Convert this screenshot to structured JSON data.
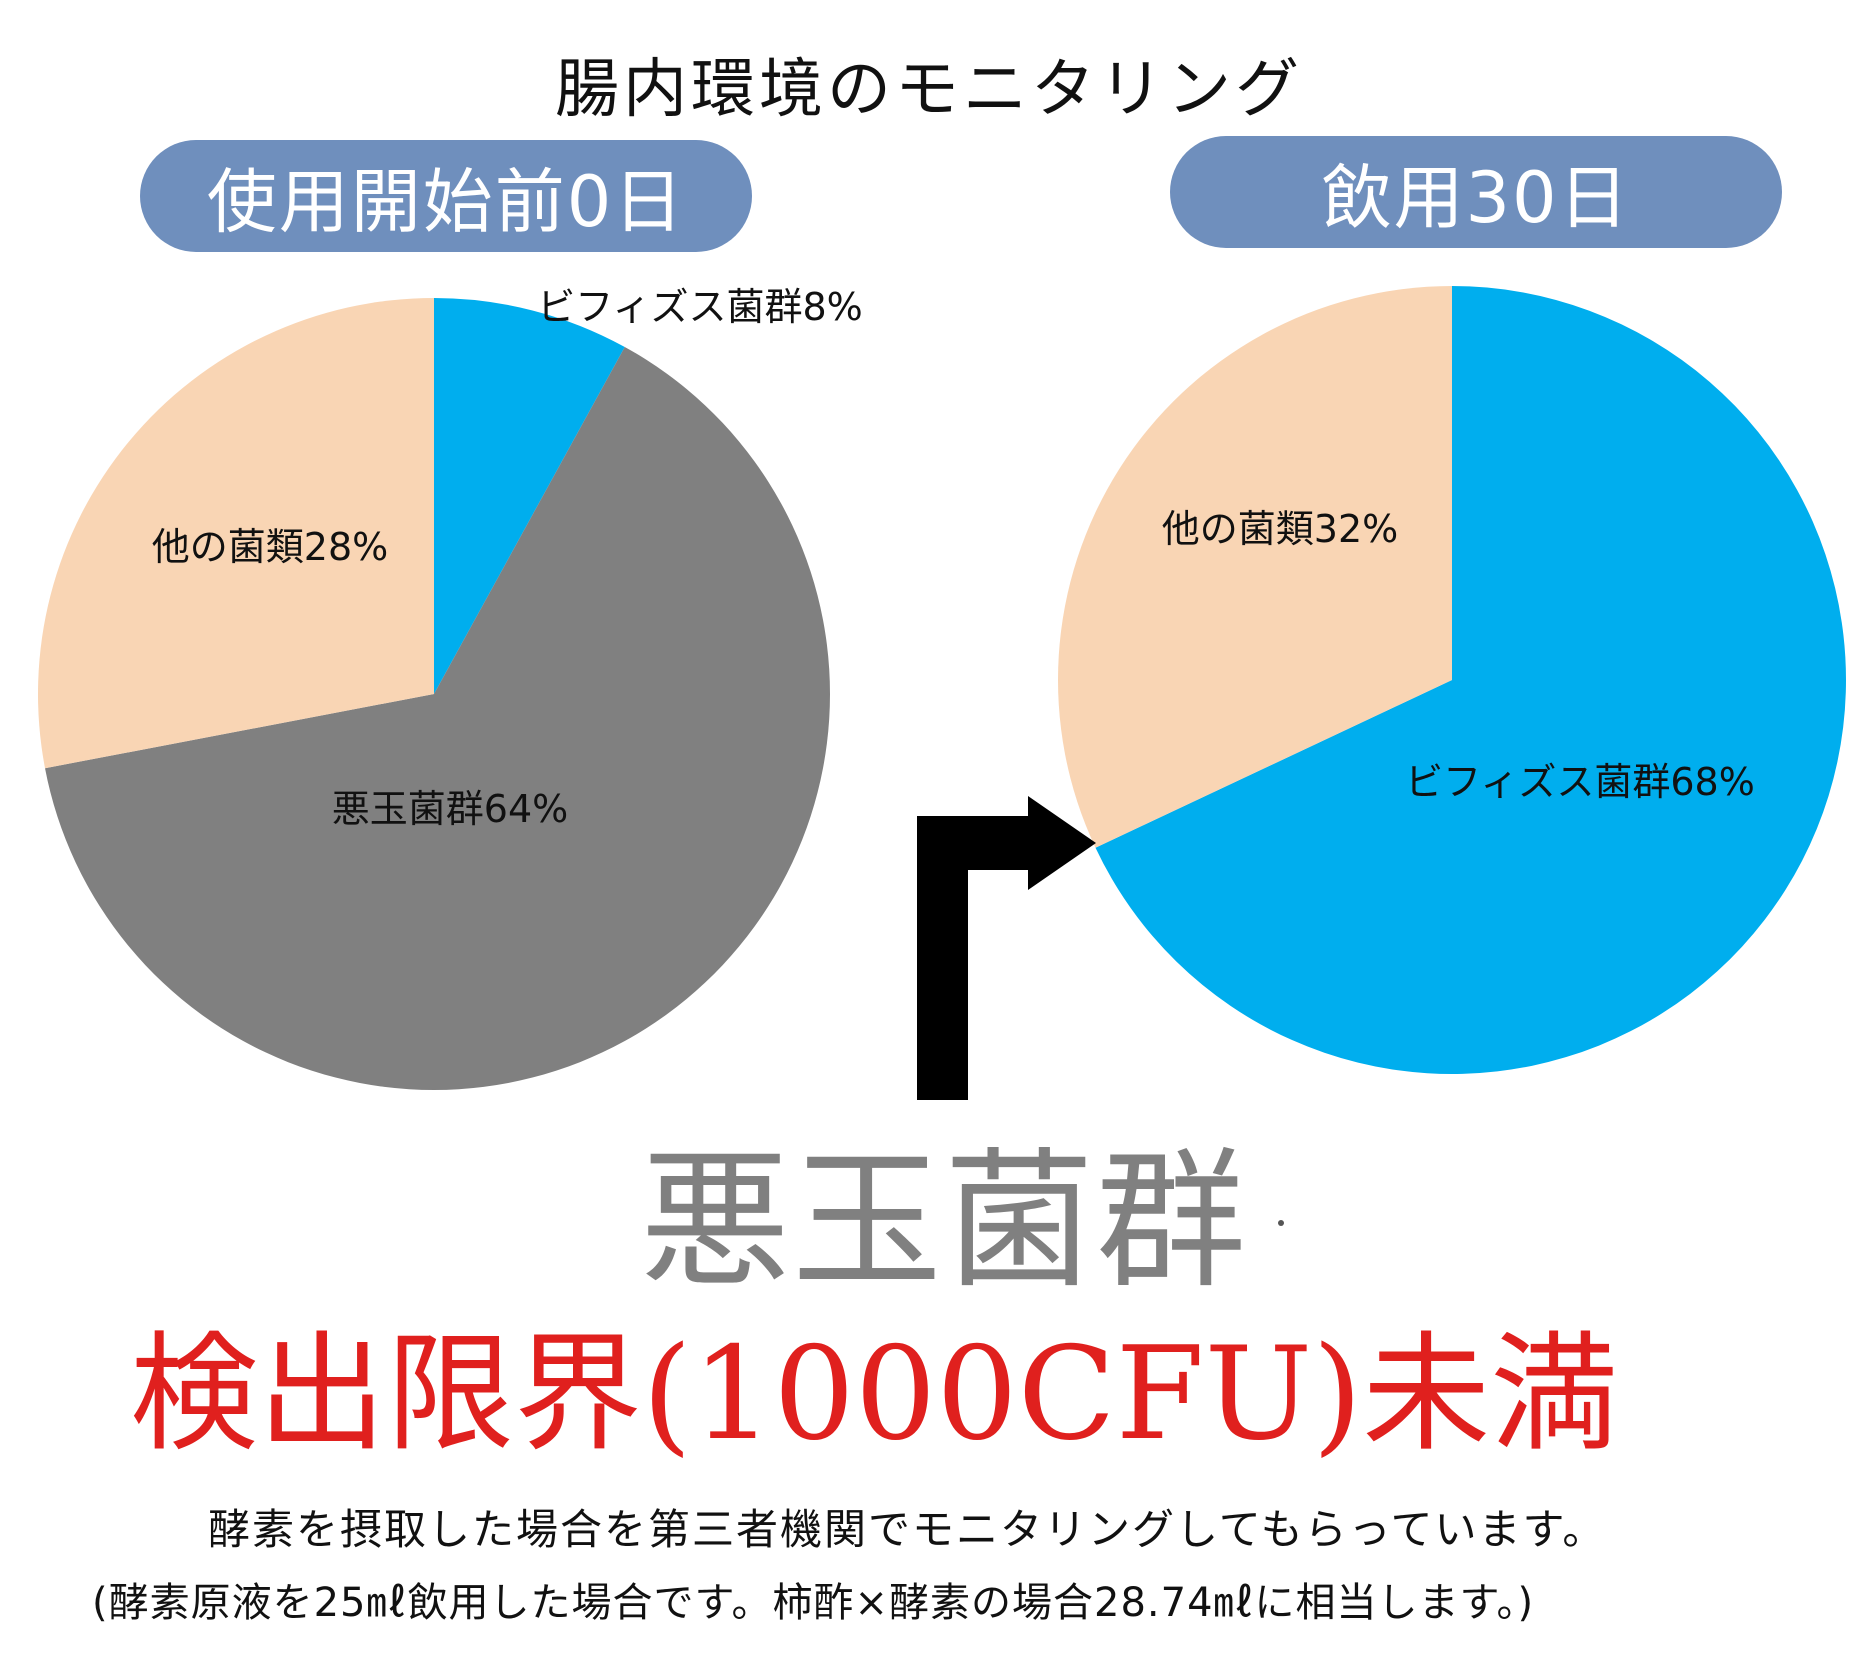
{
  "title": "腸内環境のモニタリング",
  "panels": {
    "before_label": "使用開始前0日",
    "after_label": "飲用30日"
  },
  "colors": {
    "pill": "#6f8fbd",
    "bifidus": "#00aeee",
    "bad": "#808080",
    "other": "#f9d5b4",
    "red": "#e0201e",
    "arrow": "#000000"
  },
  "chart_data": [
    {
      "type": "pie",
      "title": "使用開始前0日",
      "slices": [
        {
          "label": "ビフィズス菌群8%",
          "value": 8,
          "color": "#00aeee"
        },
        {
          "label": "悪玉菌群64%",
          "value": 64,
          "color": "#808080"
        },
        {
          "label": "他の菌類28%",
          "value": 28,
          "color": "#f9d5b4"
        }
      ]
    },
    {
      "type": "pie",
      "title": "飲用30日",
      "slices": [
        {
          "label": "ビフィズス菌群68%",
          "value": 68,
          "color": "#00aeee"
        },
        {
          "label": "他の菌類32%",
          "value": 32,
          "color": "#f9d5b4"
        }
      ]
    }
  ],
  "arrow_icon": "bent-arrow-right-icon",
  "result": {
    "heading": "悪玉菌群",
    "detail": "検出限界(1000CFU)未満"
  },
  "notes": {
    "line1": "酵素を摂取した場合を第三者機関でモニタリングしてもらっています。",
    "line2": "(酵素原液を25㎖飲用した場合です。柿酢×酵素の場合28.74㎖に相当します。)"
  }
}
